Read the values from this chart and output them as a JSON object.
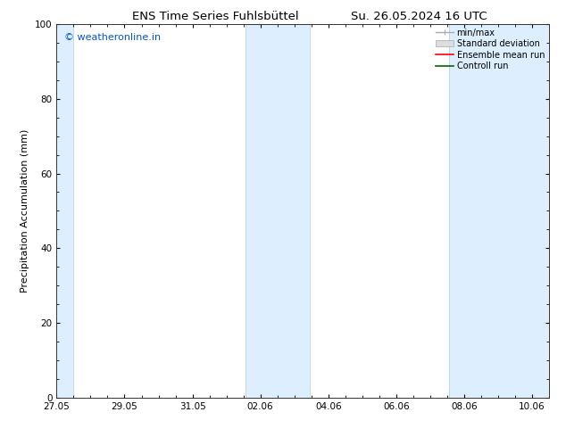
{
  "title_left": "ENS Time Series Fuhlsbüttel",
  "title_right": "Su. 26.05.2024 16 UTC",
  "ylabel": "Precipitation Accumulation (mm)",
  "watermark": "© weatheronline.in",
  "watermark_color": "#0055cc",
  "ylim": [
    0,
    100
  ],
  "yticks": [
    0,
    20,
    40,
    60,
    80,
    100
  ],
  "xtick_labels": [
    "27.05",
    "29.05",
    "31.05",
    "02.06",
    "04.06",
    "06.06",
    "08.06",
    "10.06"
  ],
  "xtick_positions": [
    0,
    2,
    4,
    6,
    8,
    10,
    12,
    14
  ],
  "x_min": 0,
  "x_max": 14.5,
  "shaded_bands": [
    {
      "x_start": -0.1,
      "x_end": 0.5,
      "color": "#ddeeff"
    },
    {
      "x_start": 5.55,
      "x_end": 7.45,
      "color": "#ddeeff"
    },
    {
      "x_start": 11.55,
      "x_end": 14.5,
      "color": "#ddeeff"
    }
  ],
  "band_border_color": "#b8d4e8",
  "background_color": "#ffffff",
  "legend_items": [
    {
      "label": "min/max",
      "color": "#aaaaaa"
    },
    {
      "label": "Standard deviation",
      "color": "#cccccc"
    },
    {
      "label": "Ensemble mean run",
      "color": "#ff0000"
    },
    {
      "label": "Controll run",
      "color": "#006600"
    }
  ],
  "title_fontsize": 9.5,
  "ylabel_fontsize": 8,
  "tick_fontsize": 7.5,
  "watermark_fontsize": 8,
  "legend_fontsize": 7
}
